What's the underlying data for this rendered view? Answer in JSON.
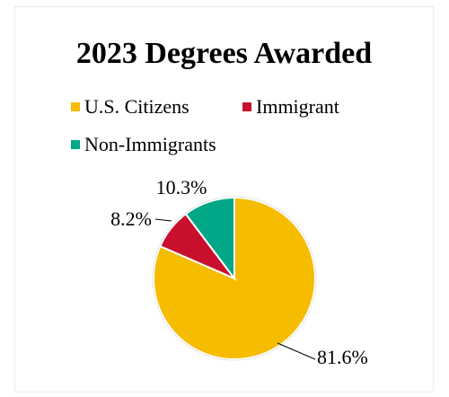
{
  "chart_data": {
    "type": "pie",
    "title": "2023 Degrees Awarded",
    "categories": [
      "U.S. Citizens",
      "Immigrant",
      "Non-Immigrants"
    ],
    "values": [
      81.6,
      8.2,
      10.3
    ],
    "labels": [
      "81.6%",
      "8.2%",
      "10.3%"
    ],
    "colors": [
      "#f5bc00",
      "#c8102e",
      "#00a887"
    ],
    "legend_position": "top",
    "unit": "%"
  }
}
